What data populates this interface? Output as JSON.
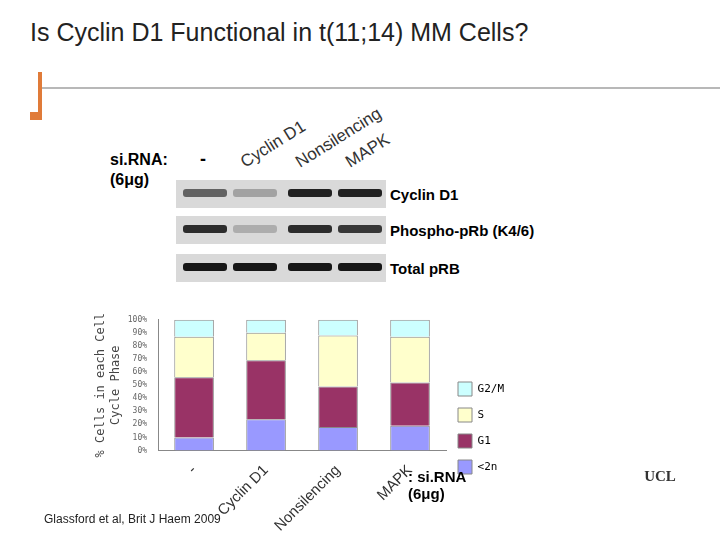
{
  "slide": {
    "title": "Is Cyclin D1 Functional in t(11;14) MM Cells?",
    "blot": {
      "row_label": [
        "si.RNA:",
        "(6μg)"
      ],
      "lanes": [
        "-",
        "Cyclin D1",
        "Nonsilencing",
        "MAPK"
      ],
      "proteins": [
        "Cyclin D1",
        "Phospho-pRb (K4/6)",
        "Total pRB"
      ]
    },
    "citation": "Glassford et al, Brit J Haem 2009",
    "logo": "UCL"
  },
  "chart_data": {
    "type": "bar",
    "stacked": true,
    "grid": false,
    "legend": "right",
    "y_label": [
      "% Cells in each Cell",
      "Cycle Phase"
    ],
    "annotation": ": si.RNA\n(6μg)",
    "categories": [
      "-",
      "Cyclin D1",
      "Nonsilencing",
      "MAPK"
    ],
    "series": [
      {
        "name": "<2n",
        "color": "#9999ff",
        "values": [
          10,
          24,
          18,
          19
        ]
      },
      {
        "name": "G1",
        "color": "#993366",
        "values": [
          46,
          45,
          31,
          33
        ]
      },
      {
        "name": "S",
        "color": "#ffffcc",
        "values": [
          31,
          21,
          39,
          35
        ]
      },
      {
        "name": "G2/M",
        "color": "#ccffff",
        "values": [
          13,
          10,
          12,
          13
        ]
      }
    ],
    "ylim": [
      0,
      100
    ],
    "yticks": [
      {
        "value": 0,
        "label": "0%"
      },
      {
        "value": 10,
        "label": "10%"
      },
      {
        "value": 20,
        "label": "20%"
      },
      {
        "value": 30,
        "label": "30%"
      },
      {
        "value": 40,
        "label": "40%"
      },
      {
        "value": 50,
        "label": "50%"
      },
      {
        "value": 60,
        "label": "60%"
      },
      {
        "value": 70,
        "label": "70%"
      },
      {
        "value": 80,
        "label": "80%"
      },
      {
        "value": 90,
        "label": "90%"
      },
      {
        "value": 100,
        "label": "100%"
      }
    ]
  }
}
